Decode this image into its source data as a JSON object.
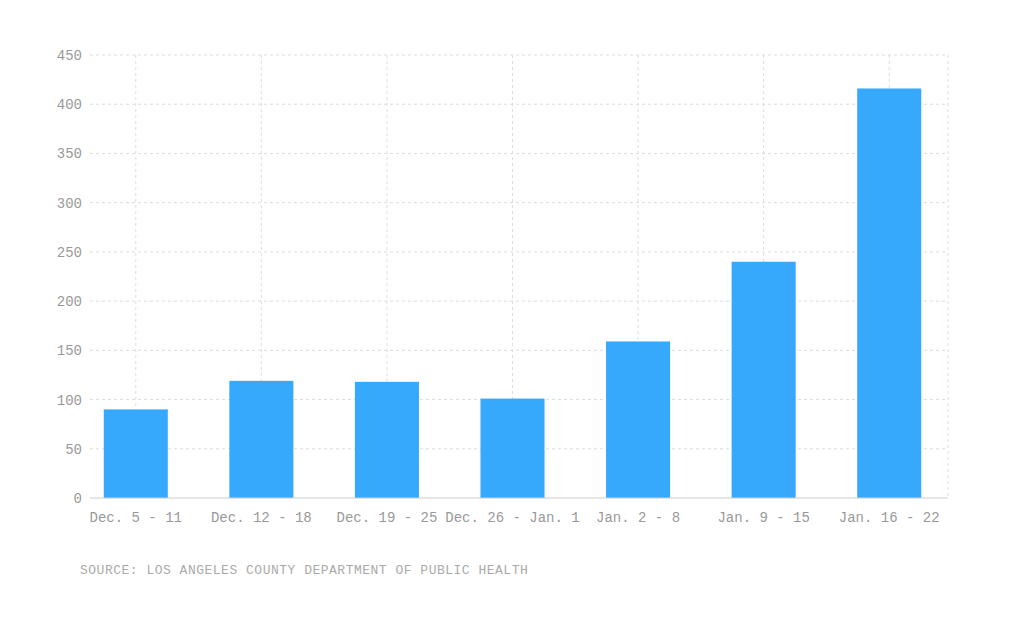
{
  "chart_data": {
    "type": "bar",
    "categories": [
      "Dec. 5 - 11",
      "Dec. 12 - 18",
      "Dec. 19 - 25",
      "Dec. 26 - Jan. 1",
      "Jan. 2 - 8",
      "Jan. 9 - 15",
      "Jan. 16 - 22"
    ],
    "values": [
      90,
      119,
      118,
      101,
      159,
      240,
      416
    ],
    "color": "#36a9fd",
    "ylim": [
      0,
      450
    ],
    "yticks": [
      0,
      50,
      100,
      150,
      200,
      250,
      300,
      350,
      400,
      450
    ],
    "grid": true,
    "source": "SOURCE: LOS ANGELES COUNTY DEPARTMENT OF PUBLIC HEALTH"
  }
}
